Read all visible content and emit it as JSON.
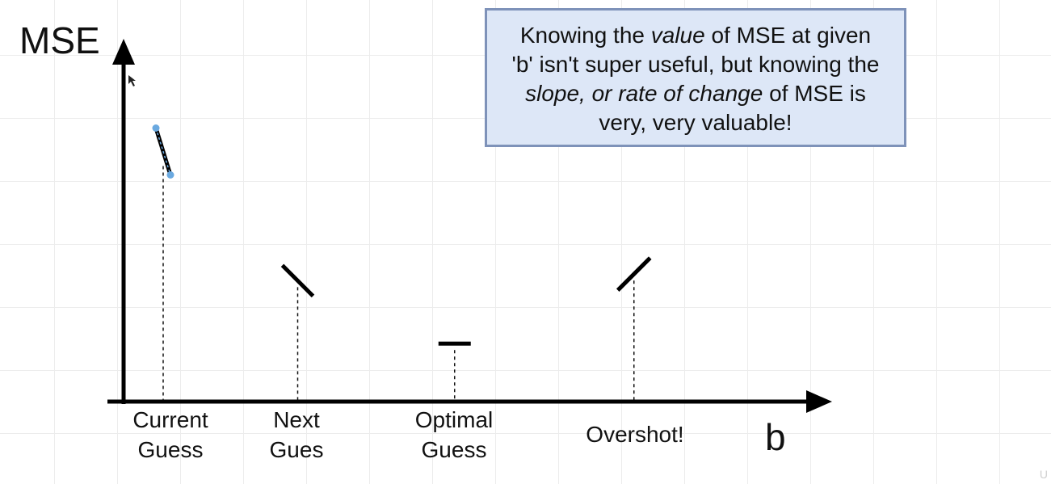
{
  "diagram": {
    "y_axis_label": "MSE",
    "x_axis_label": "b",
    "points": [
      {
        "id": "current",
        "label_lines": [
          "Current",
          "Guess"
        ],
        "x": 0.0,
        "y": 0.75,
        "slope": "steep-negative",
        "selected": true
      },
      {
        "id": "next",
        "label_lines": [
          "Next",
          "Gues"
        ],
        "x": 0.3,
        "y": 0.36,
        "slope": "negative"
      },
      {
        "id": "optimal",
        "label_lines": [
          "Optimal",
          "Guess"
        ],
        "x": 0.65,
        "y": 0.17,
        "slope": "zero"
      },
      {
        "id": "overshot",
        "label_lines": [
          "Overshot!"
        ],
        "x": 1.05,
        "y": 0.38,
        "slope": "positive"
      }
    ]
  },
  "note": {
    "line1_pre": "Knowing the ",
    "line1_em": "value",
    "line1_post": " of MSE at given",
    "line2": "'b' isn't super useful, but knowing the",
    "line3_em": "slope, or rate of change",
    "line3_post": " of MSE is",
    "line4": "very, very valuable!"
  },
  "colors": {
    "axis": "#000000",
    "note_bg": "#dde7f7",
    "note_border": "#7e92b9",
    "selection_handle": "#6aa9e0"
  },
  "watermark": "U"
}
